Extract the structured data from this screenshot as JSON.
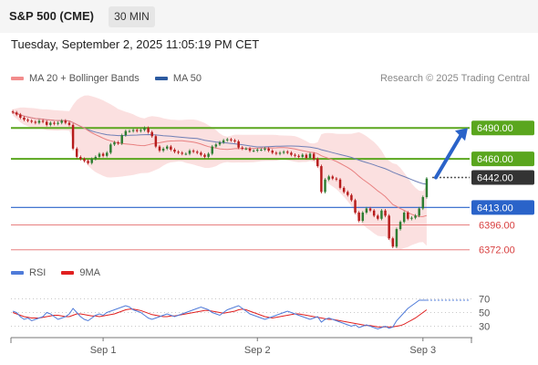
{
  "header": {
    "title": "S&P 500 (CME)",
    "timeframe_label": "30 MIN",
    "datetime": "Tuesday, September 2, 2025 11:05:19 PM CET"
  },
  "legend_main": [
    {
      "label": "MA 20 + Bollinger Bands",
      "color": "#f28c8c"
    },
    {
      "label": "MA 50",
      "color": "#2c5aa0"
    }
  ],
  "research_label": "Research © 2025 Trading Central",
  "legend_rsi": [
    {
      "label": "RSI",
      "color": "#4f7bd9"
    },
    {
      "label": "9MA",
      "color": "#e02020"
    }
  ],
  "colors": {
    "resistance": "#5aa61e",
    "support_blue": "#2a63c9",
    "support_red": "#e88080",
    "candle_up": "#2e7d32",
    "candle_down": "#b71c1c",
    "band_fill": "#fbe0e0",
    "ma20": "#e88080",
    "ma50": "#6f7fb6",
    "current_tag": "#333333",
    "arrow": "#2a63c9"
  },
  "chart_data": {
    "type": "candlestick",
    "price_ylim": [
      6362,
      6530
    ],
    "x_labels": [
      "Sep 1",
      "Sep 2",
      "Sep 3"
    ],
    "levels": [
      {
        "value": 6490.0,
        "label": "6490.00",
        "kind": "resistance"
      },
      {
        "value": 6460.0,
        "label": "6460.00",
        "kind": "resistance"
      },
      {
        "value": 6442.0,
        "label": "6442.00",
        "kind": "current"
      },
      {
        "value": 6413.0,
        "label": "6413.00",
        "kind": "support_blue"
      },
      {
        "value": 6396.0,
        "label": "6396.00",
        "kind": "support_red"
      },
      {
        "value": 6372.0,
        "label": "6372.00",
        "kind": "support_red"
      }
    ],
    "projection": {
      "from": 6442,
      "to": 6490
    },
    "close": [
      6505,
      6503,
      6500,
      6498,
      6497,
      6496,
      6495,
      6497,
      6496,
      6493,
      6495,
      6494,
      6495,
      6497,
      6495,
      6493,
      6470,
      6462,
      6460,
      6458,
      6456,
      6460,
      6462,
      6465,
      6463,
      6466,
      6474,
      6476,
      6475,
      6483,
      6487,
      6487,
      6488,
      6487,
      6488,
      6490,
      6486,
      6482,
      6472,
      6468,
      6470,
      6472,
      6469,
      6467,
      6466,
      6465,
      6465,
      6468,
      6467,
      6466,
      6464,
      6462,
      6465,
      6472,
      6474,
      6476,
      6478,
      6479,
      6478,
      6477,
      6471,
      6470,
      6470,
      6468,
      6468,
      6469,
      6469,
      6470,
      6468,
      6466,
      6465,
      6466,
      6467,
      6466,
      6464,
      6463,
      6462,
      6464,
      6461,
      6465,
      6460,
      6453,
      6428,
      6440,
      6443,
      6441,
      6440,
      6432,
      6428,
      6425,
      6420,
      6408,
      6400,
      6408,
      6412,
      6410,
      6405,
      6402,
      6410,
      6405,
      6383,
      6375,
      6392,
      6399,
      6408,
      6402,
      6403,
      6405,
      6412,
      6423,
      6441
    ],
    "rsi": {
      "ylim": [
        20,
        80
      ],
      "ticks": [
        "70",
        "50",
        "30"
      ],
      "tick_values": [
        70,
        50,
        30
      ],
      "rsi": [
        52,
        50,
        44,
        40,
        42,
        38,
        40,
        42,
        44,
        50,
        48,
        44,
        40,
        42,
        44,
        48,
        56,
        50,
        44,
        40,
        38,
        42,
        46,
        48,
        46,
        50,
        52,
        54,
        56,
        58,
        60,
        58,
        54,
        52,
        50,
        46,
        42,
        40,
        42,
        44,
        46,
        48,
        46,
        44,
        46,
        48,
        50,
        52,
        54,
        56,
        58,
        56,
        54,
        50,
        48,
        46,
        50,
        54,
        56,
        58,
        60,
        56,
        52,
        48,
        46,
        44,
        42,
        40,
        42,
        44,
        46,
        48,
        50,
        52,
        50,
        48,
        46,
        44,
        42,
        40,
        42,
        44,
        36,
        40,
        42,
        40,
        38,
        36,
        34,
        32,
        30,
        32,
        28,
        30,
        32,
        30,
        28,
        26,
        28,
        30,
        27,
        29,
        38,
        44,
        50,
        56,
        60,
        64,
        68,
        68,
        68
      ],
      "ma9": [
        50,
        48,
        46,
        44,
        43,
        42,
        42,
        42,
        43,
        44,
        45,
        46,
        46,
        45,
        44,
        44,
        46,
        48,
        48,
        47,
        46,
        45,
        45,
        44,
        45,
        46,
        47,
        48,
        50,
        52,
        54,
        55,
        55,
        54,
        53,
        51,
        49,
        47,
        46,
        45,
        44,
        44,
        45,
        45,
        46,
        47,
        48,
        49,
        50,
        51,
        52,
        53,
        53,
        52,
        51,
        50,
        49,
        50,
        51,
        52,
        54,
        55,
        54,
        52,
        50,
        48,
        46,
        44,
        43,
        42,
        43,
        44,
        45,
        46,
        47,
        48,
        48,
        47,
        46,
        45,
        44,
        43,
        42,
        41,
        40,
        40,
        39,
        38,
        37,
        36,
        35,
        34,
        33,
        32,
        31,
        31,
        30,
        29,
        29,
        29,
        29,
        29,
        30,
        31,
        33,
        36,
        39,
        42,
        46,
        50,
        54
      ]
    }
  }
}
